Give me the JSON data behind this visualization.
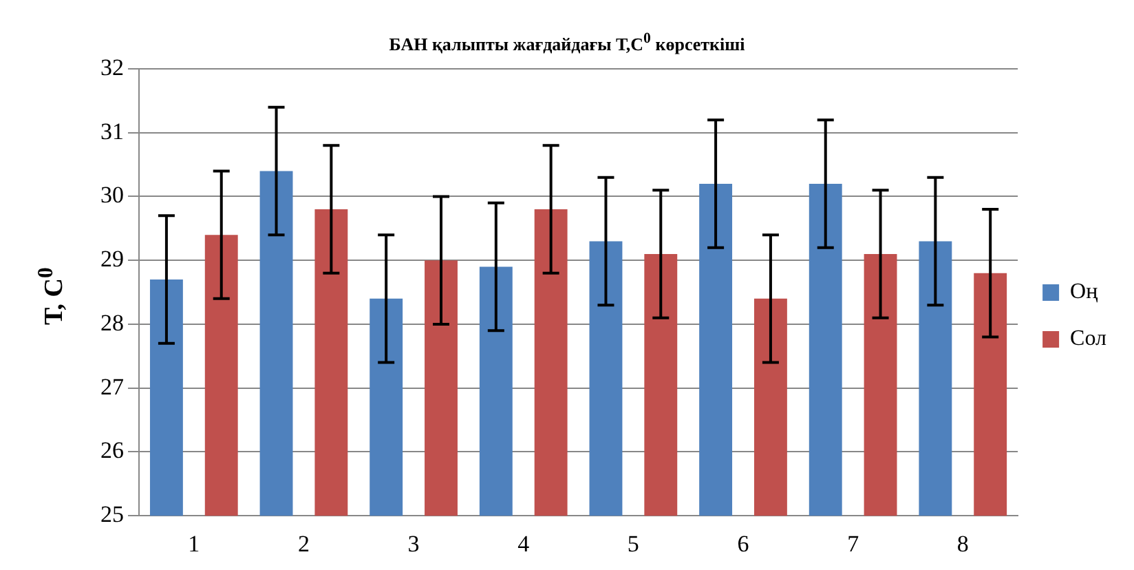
{
  "chart_data": {
    "type": "bar",
    "title": "БАН қалыпты жағдайдағы Т,С$^{0}$ көрсеткіші",
    "ylabel": "Т, С$^{0}$",
    "categories": [
      "1",
      "2",
      "3",
      "4",
      "5",
      "6",
      "7",
      "8"
    ],
    "series": [
      {
        "name": "Оң",
        "color": "#4f81bd",
        "values": [
          28.7,
          30.4,
          28.4,
          28.9,
          29.3,
          30.2,
          30.2,
          29.3
        ],
        "errors": [
          1,
          1,
          1,
          1,
          1,
          1,
          1,
          1
        ]
      },
      {
        "name": "Сол",
        "color": "#c0504d",
        "values": [
          29.4,
          29.8,
          29.0,
          29.8,
          29.1,
          28.4,
          29.1,
          28.8
        ],
        "errors": [
          1,
          1,
          1,
          1,
          1,
          1,
          1,
          1
        ]
      }
    ],
    "ylim": [
      25,
      32
    ],
    "yticks": [
      25,
      26,
      27,
      28,
      29,
      30,
      31,
      32
    ],
    "grid": "y",
    "legend": "right"
  }
}
